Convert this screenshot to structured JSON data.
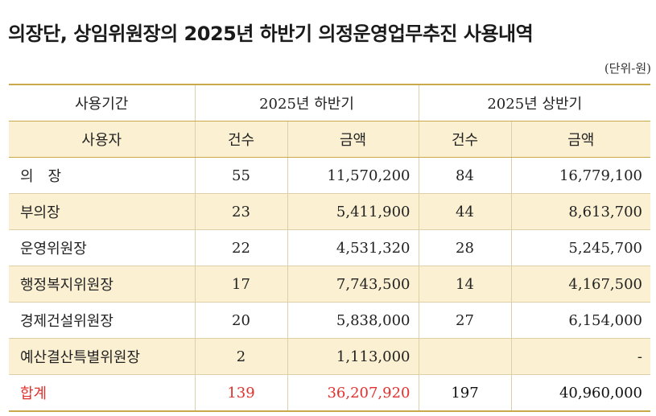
{
  "title": "의장단, 상임위원장의 2025년 하반기 의정운영업무추진 사용내역",
  "unit": "(단위-원)",
  "header": {
    "period_label": "사용기간",
    "period_h2": "2025년 하반기",
    "period_h1": "2025년 상반기",
    "user_label": "사용자",
    "count_label": "건수",
    "amount_label": "금액"
  },
  "rows": [
    {
      "user": "의　장",
      "h2_count": "55",
      "h2_amount": "11,570,200",
      "h1_count": "84",
      "h1_amount": "16,779,100"
    },
    {
      "user": "부의장",
      "h2_count": "23",
      "h2_amount": "5,411,900",
      "h1_count": "44",
      "h1_amount": "8,613,700"
    },
    {
      "user": "운영위원장",
      "h2_count": "22",
      "h2_amount": "4,531,320",
      "h1_count": "28",
      "h1_amount": "5,245,700"
    },
    {
      "user": "행정복지위원장",
      "h2_count": "17",
      "h2_amount": "7,743,500",
      "h1_count": "14",
      "h1_amount": "4,167,500"
    },
    {
      "user": "경제건설위원장",
      "h2_count": "20",
      "h2_amount": "5,838,000",
      "h1_count": "27",
      "h1_amount": "6,154,000"
    },
    {
      "user": "예산결산특별위원장",
      "h2_count": "2",
      "h2_amount": "1,113,000",
      "h1_count": "",
      "h1_amount": "-"
    }
  ],
  "total": {
    "user": "합계",
    "h2_count": "139",
    "h2_amount": "36,207,920",
    "h1_count": "197",
    "h1_amount": "40,960,000"
  },
  "colors": {
    "accent_red": "#e0312e",
    "row_band": "#fbf0d2",
    "border_gold": "#c9a94a"
  }
}
